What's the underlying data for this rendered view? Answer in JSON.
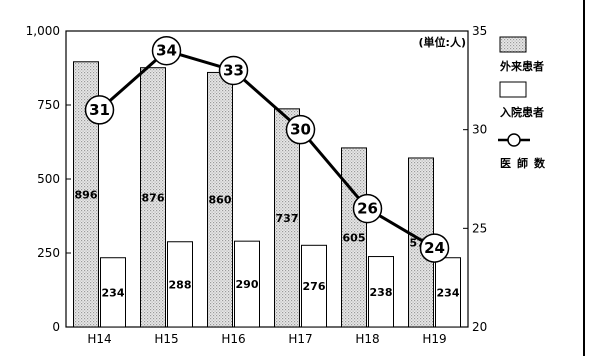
{
  "chart_data": {
    "type": "bar",
    "categories": [
      "H14",
      "H15",
      "H16",
      "H17",
      "H18",
      "H19"
    ],
    "series": [
      {
        "name": "外来患者",
        "values": [
          896,
          876,
          860,
          737,
          605,
          571
        ],
        "axis": "left",
        "fill": "#d8d8d8",
        "pattern": "dotted"
      },
      {
        "name": "入院患者",
        "values": [
          234,
          288,
          290,
          276,
          238,
          234
        ],
        "axis": "left",
        "fill": "#ffffff"
      },
      {
        "name": "医師数",
        "type": "line",
        "values": [
          31,
          34,
          33,
          30,
          26,
          24
        ],
        "axis": "right",
        "color": "#000000"
      }
    ],
    "y_left": {
      "ylim": [
        0,
        1000
      ],
      "ticks": [
        "0",
        "250",
        "500",
        "750",
        "1,000"
      ]
    },
    "y_right": {
      "ylim": [
        20,
        35
      ],
      "ticks": [
        "20",
        "25",
        "30",
        "35"
      ]
    },
    "unit_label": "(単位:人)",
    "legend": {
      "position": "right"
    },
    "grid": false
  }
}
